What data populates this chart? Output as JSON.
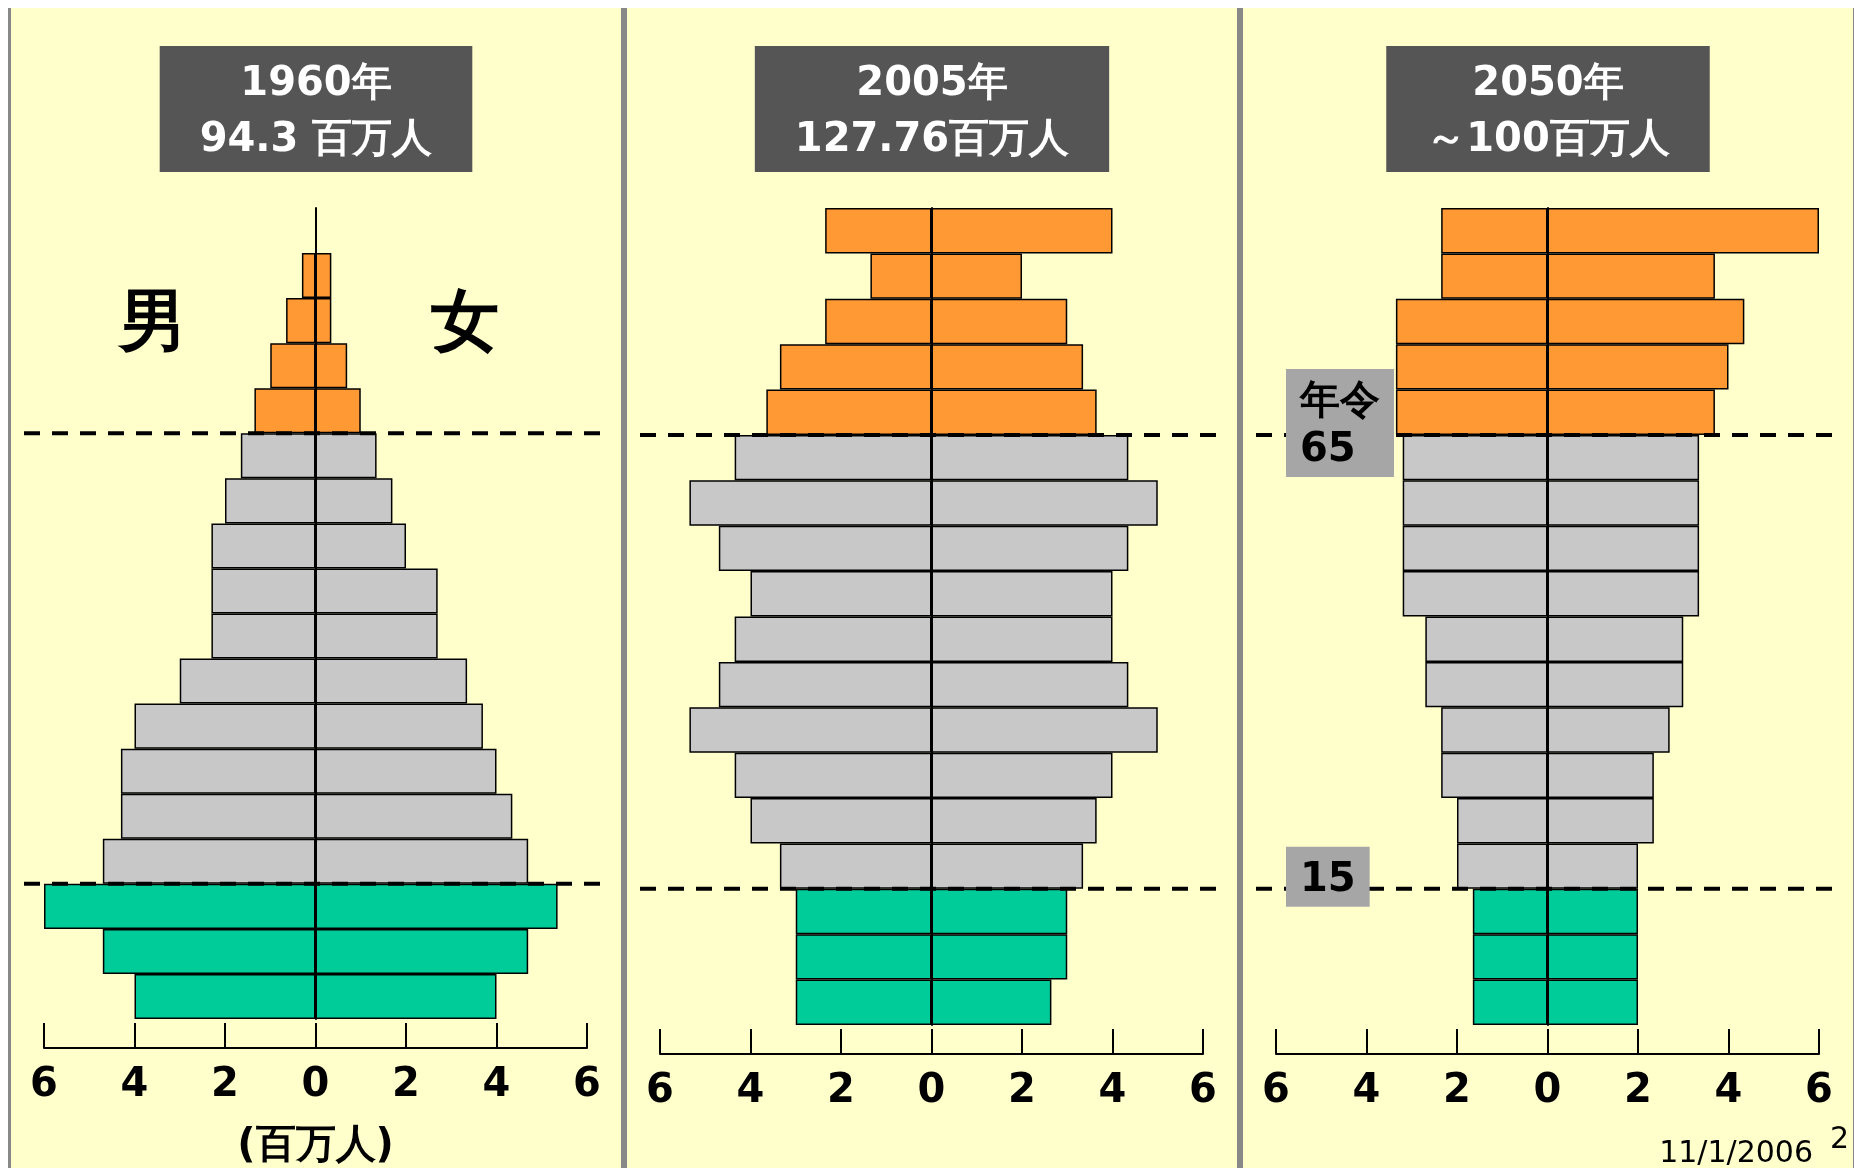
{
  "chart_data": [
    {
      "type": "bar",
      "orientation": "horizontal",
      "stacked": true,
      "title": "1960年",
      "subtitle": "94.3 百万人",
      "xlabel": "(百万人)",
      "tick_labels": "x",
      "grid": false,
      "legend": false,
      "xlim": [
        -6,
        6
      ],
      "xticks": [
        {
          "value": -6,
          "label": "6"
        },
        {
          "value": -4,
          "label": "4"
        },
        {
          "value": -2,
          "label": "2"
        },
        0,
        2,
        4,
        6
      ],
      "categories": [
        null,
        null,
        null,
        null,
        null,
        null,
        null,
        null,
        null,
        null,
        null,
        null,
        null,
        null,
        null,
        null,
        null,
        null
      ],
      "series": [
        {
          "name": "男",
          "values": [
            null,
            -0.3,
            -0.65,
            -1.0,
            -1.35,
            -1.65,
            -2.0,
            -2.3,
            -2.3,
            -2.3,
            -3.0,
            -4.0,
            -4.3,
            -4.3,
            -4.7,
            -6.0,
            -4.7,
            -4.0
          ],
          "colors": [
            "#ff9933",
            "#ff9933",
            "#ff9933",
            "#ff9933",
            "#ff9933",
            "#c8c8c8",
            "#c8c8c8",
            "#c8c8c8",
            "#c8c8c8",
            "#c8c8c8",
            "#c8c8c8",
            "#c8c8c8",
            "#c8c8c8",
            "#c8c8c8",
            "#c8c8c8",
            "#00cc99",
            "#00cc99",
            "#00cc99"
          ]
        },
        {
          "name": "女",
          "values": [
            null,
            0.35,
            0.35,
            0.7,
            1.0,
            1.35,
            1.7,
            2.0,
            2.7,
            2.7,
            3.35,
            3.7,
            4.0,
            4.35,
            4.7,
            5.35,
            4.7,
            4.0
          ],
          "colors": [
            "#ff9933",
            "#ff9933",
            "#ff9933",
            "#ff9933",
            "#ff9933",
            "#c8c8c8",
            "#c8c8c8",
            "#c8c8c8",
            "#c8c8c8",
            "#c8c8c8",
            "#c8c8c8",
            "#c8c8c8",
            "#c8c8c8",
            "#c8c8c8",
            "#c8c8c8",
            "#00cc99",
            "#00cc99",
            "#00cc99"
          ]
        }
      ]
    },
    {
      "type": "bar",
      "orientation": "horizontal",
      "stacked": true,
      "title": "2005年",
      "subtitle": "127.76百万人",
      "tick_labels": "x",
      "grid": false,
      "legend": false,
      "xlim": [
        -6,
        6
      ],
      "xticks": [
        {
          "value": -6,
          "label": "6"
        },
        {
          "value": -4,
          "label": "4"
        },
        {
          "value": -2,
          "label": "2"
        },
        0,
        2,
        4,
        6
      ],
      "categories": [
        null,
        null,
        null,
        null,
        null,
        null,
        null,
        null,
        null,
        null,
        null,
        null,
        null,
        null,
        null,
        null,
        null,
        null
      ],
      "series": [
        {
          "values": [
            -2.35,
            -1.35,
            -2.35,
            -3.35,
            -3.65,
            -4.35,
            -5.35,
            -4.7,
            -4.0,
            -4.35,
            -4.7,
            -5.35,
            -4.35,
            -4.0,
            -3.35,
            -3.0,
            -3.0,
            -3.0
          ],
          "colors": [
            "#ff9933",
            "#ff9933",
            "#ff9933",
            "#ff9933",
            "#ff9933",
            "#c8c8c8",
            "#c8c8c8",
            "#c8c8c8",
            "#c8c8c8",
            "#c8c8c8",
            "#c8c8c8",
            "#c8c8c8",
            "#c8c8c8",
            "#c8c8c8",
            "#c8c8c8",
            "#00cc99",
            "#00cc99",
            "#00cc99"
          ]
        },
        {
          "values": [
            4.0,
            2.0,
            3.0,
            3.35,
            3.65,
            4.35,
            5.0,
            4.35,
            4.0,
            4.0,
            4.35,
            5.0,
            4.0,
            3.65,
            3.35,
            3.0,
            3.0,
            2.65
          ],
          "colors": [
            "#ff9933",
            "#ff9933",
            "#ff9933",
            "#ff9933",
            "#ff9933",
            "#c8c8c8",
            "#c8c8c8",
            "#c8c8c8",
            "#c8c8c8",
            "#c8c8c8",
            "#c8c8c8",
            "#c8c8c8",
            "#c8c8c8",
            "#c8c8c8",
            "#c8c8c8",
            "#00cc99",
            "#00cc99",
            "#00cc99"
          ]
        }
      ]
    },
    {
      "type": "bar",
      "orientation": "horizontal",
      "stacked": true,
      "title": "2050年",
      "subtitle": "～100百万人",
      "tick_labels": "x",
      "grid": false,
      "legend": false,
      "xlim": [
        -6,
        6
      ],
      "xticks": [
        {
          "value": -6,
          "label": "6"
        },
        {
          "value": -4,
          "label": "4"
        },
        {
          "value": -2,
          "label": "2"
        },
        0,
        2,
        4,
        6
      ],
      "annotations": [
        "年令\n65",
        "15",
        "11/1/2006",
        "2"
      ],
      "categories": [
        null,
        null,
        null,
        null,
        null,
        null,
        null,
        null,
        null,
        null,
        null,
        null,
        null,
        null,
        null,
        null,
        null,
        null
      ],
      "series": [
        {
          "values": [
            -2.35,
            -2.35,
            -3.35,
            -3.35,
            -3.35,
            -3.2,
            -3.2,
            -3.2,
            -3.2,
            -2.7,
            -2.7,
            -2.35,
            -2.35,
            -2.0,
            -2.0,
            -1.65,
            -1.65,
            -1.65
          ],
          "colors": [
            "#ff9933",
            "#ff9933",
            "#ff9933",
            "#ff9933",
            "#ff9933",
            "#c8c8c8",
            "#c8c8c8",
            "#c8c8c8",
            "#c8c8c8",
            "#c8c8c8",
            "#c8c8c8",
            "#c8c8c8",
            "#c8c8c8",
            "#c8c8c8",
            "#c8c8c8",
            "#00cc99",
            "#00cc99",
            "#00cc99"
          ]
        },
        {
          "values": [
            6.0,
            3.7,
            4.35,
            4.0,
            3.7,
            3.35,
            3.35,
            3.35,
            3.35,
            3.0,
            3.0,
            2.7,
            2.35,
            2.35,
            2.0,
            2.0,
            2.0,
            2.0
          ],
          "colors": [
            "#ff9933",
            "#ff9933",
            "#ff9933",
            "#ff9933",
            "#ff9933",
            "#c8c8c8",
            "#c8c8c8",
            "#c8c8c8",
            "#c8c8c8",
            "#c8c8c8",
            "#c8c8c8",
            "#c8c8c8",
            "#c8c8c8",
            "#c8c8c8",
            "#c8c8c8",
            "#00cc99",
            "#00cc99",
            "#00cc99"
          ]
        }
      ]
    }
  ]
}
